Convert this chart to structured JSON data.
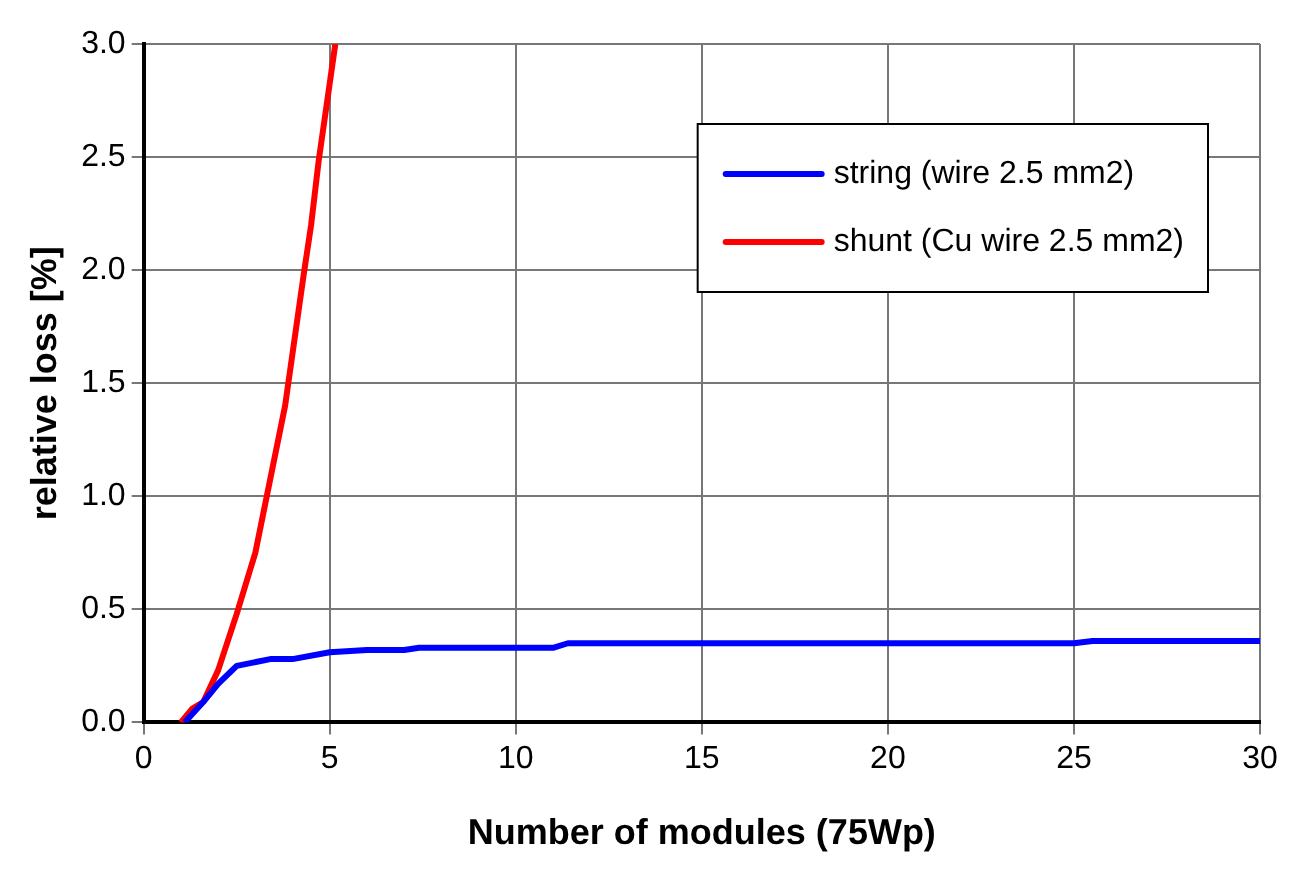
{
  "chart_data": {
    "type": "line",
    "xlabel": "Number of modules (75Wp)",
    "ylabel": "relative loss [%]",
    "xlim": [
      0,
      30
    ],
    "xticks": [
      0,
      5,
      10,
      15,
      20,
      25,
      30
    ],
    "ylim": [
      0,
      3
    ],
    "yticks": [
      {
        "value": 0,
        "label": "0.0"
      },
      {
        "value": 0.5,
        "label": "0.5"
      },
      {
        "value": 1,
        "label": "1.0"
      },
      {
        "value": 1.5,
        "label": "1.5"
      },
      {
        "value": 2,
        "label": "2.0"
      },
      {
        "value": 2.5,
        "label": "2.5"
      },
      {
        "value": 3,
        "label": "3.0"
      }
    ],
    "grid": true,
    "legend": "top right",
    "marker": "none",
    "line_style": "solid",
    "series": [
      {
        "name": "string (wire 2.5 mm2)",
        "color": "#0000ff",
        "x": [
          1.1,
          1.6,
          2,
          2.5,
          3.4,
          4,
          5,
          6,
          7,
          7.4,
          11,
          11.4,
          25,
          25.5,
          30
        ],
        "values": [
          0,
          0.09,
          0.17,
          0.25,
          0.28,
          0.28,
          0.31,
          0.32,
          0.32,
          0.33,
          0.33,
          0.35,
          0.35,
          0.36,
          0.36
        ]
      },
      {
        "name": "shunt (Cu wire 2.5 mm2)",
        "color": "#ff0000",
        "x": [
          1,
          1.3,
          1.6,
          2,
          2.5,
          3,
          3.8,
          4.3,
          4.5,
          4.7,
          5.15
        ],
        "values": [
          0,
          0.06,
          0.09,
          0.23,
          0.48,
          0.75,
          1.4,
          1.98,
          2.2,
          2.48,
          3
        ]
      }
    ]
  }
}
